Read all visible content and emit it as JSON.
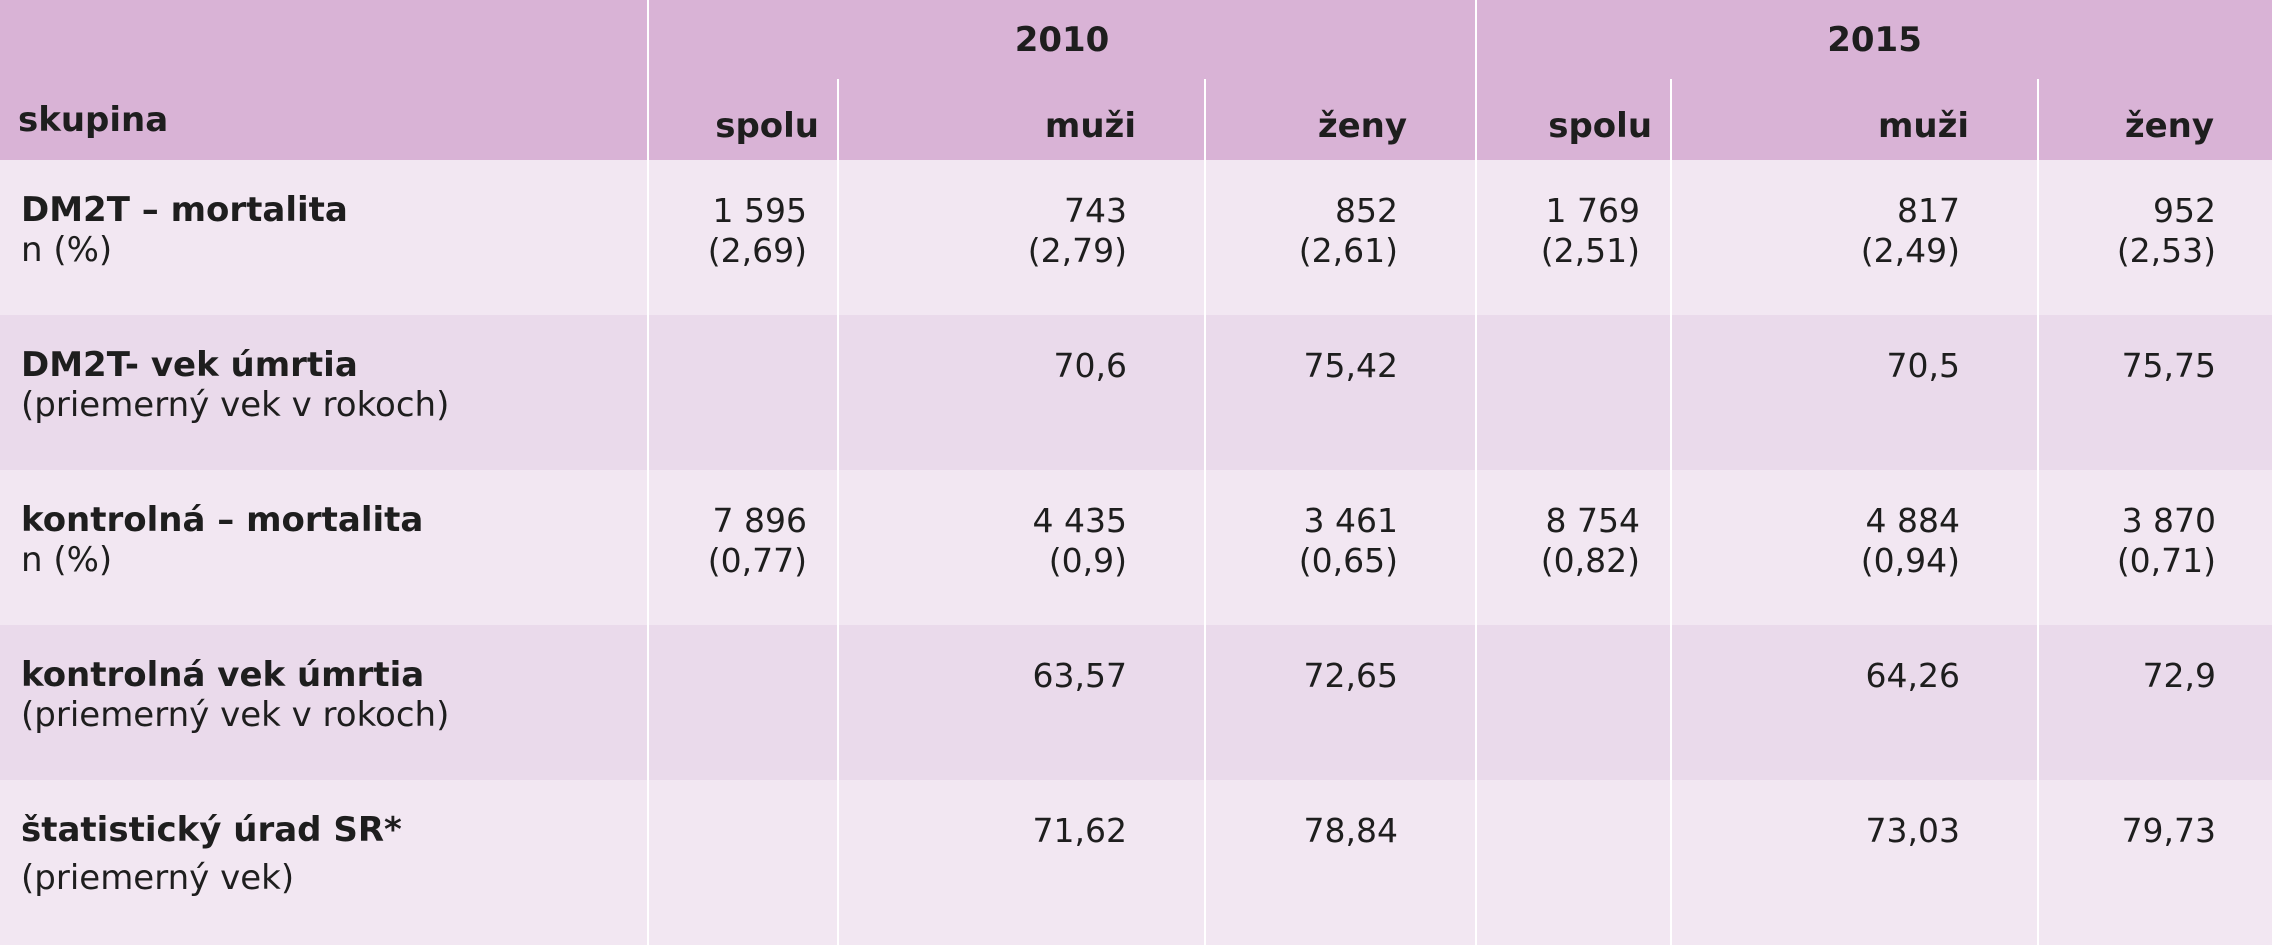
{
  "table": {
    "year_headers": [
      "2010",
      "2015"
    ],
    "group_label": "skupina",
    "sub_headers": [
      "spolu",
      "muži",
      "ženy",
      "spolu",
      "muži",
      "ženy"
    ],
    "rows": [
      {
        "title": "DM2T – mortalita",
        "subtitle": "n (%)",
        "cells": [
          {
            "value": "1 595",
            "pct": "(2,69)"
          },
          {
            "value": "743",
            "pct": "(2,79)"
          },
          {
            "value": "852",
            "pct": "(2,61)"
          },
          {
            "value": "1 769",
            "pct": "(2,51)"
          },
          {
            "value": "817",
            "pct": "(2,49)"
          },
          {
            "value": "952",
            "pct": "(2,53)"
          }
        ]
      },
      {
        "title": "DM2T- vek úmrtia",
        "subtitle": "(priemerný vek v rokoch)",
        "cells": [
          {
            "value": "",
            "pct": ""
          },
          {
            "value": "70,6",
            "pct": ""
          },
          {
            "value": "75,42",
            "pct": ""
          },
          {
            "value": "",
            "pct": ""
          },
          {
            "value": "70,5",
            "pct": ""
          },
          {
            "value": "75,75",
            "pct": ""
          }
        ]
      },
      {
        "title": "kontrolná – mortalita",
        "subtitle": "n (%)",
        "cells": [
          {
            "value": "7 896",
            "pct": "(0,77)"
          },
          {
            "value": "4 435",
            "pct": "(0,9)"
          },
          {
            "value": "3 461",
            "pct": "(0,65)"
          },
          {
            "value": "8 754",
            "pct": "(0,82)"
          },
          {
            "value": "4 884",
            "pct": "(0,94)"
          },
          {
            "value": "3 870",
            "pct": "(0,71)"
          }
        ]
      },
      {
        "title": "kontrolná vek úmrtia",
        "subtitle": "(priemerný vek v rokoch)",
        "cells": [
          {
            "value": "",
            "pct": ""
          },
          {
            "value": "63,57",
            "pct": ""
          },
          {
            "value": "72,65",
            "pct": ""
          },
          {
            "value": "",
            "pct": ""
          },
          {
            "value": "64,26",
            "pct": ""
          },
          {
            "value": "72,9",
            "pct": ""
          }
        ]
      },
      {
        "title": "štatistický úrad SR*",
        "subtitle": "(priemerný vek)",
        "cells": [
          {
            "value": "",
            "pct": ""
          },
          {
            "value": "71,62",
            "pct": ""
          },
          {
            "value": "78,84",
            "pct": ""
          },
          {
            "value": "",
            "pct": ""
          },
          {
            "value": "73,03",
            "pct": ""
          },
          {
            "value": "79,73",
            "pct": ""
          }
        ]
      }
    ]
  }
}
